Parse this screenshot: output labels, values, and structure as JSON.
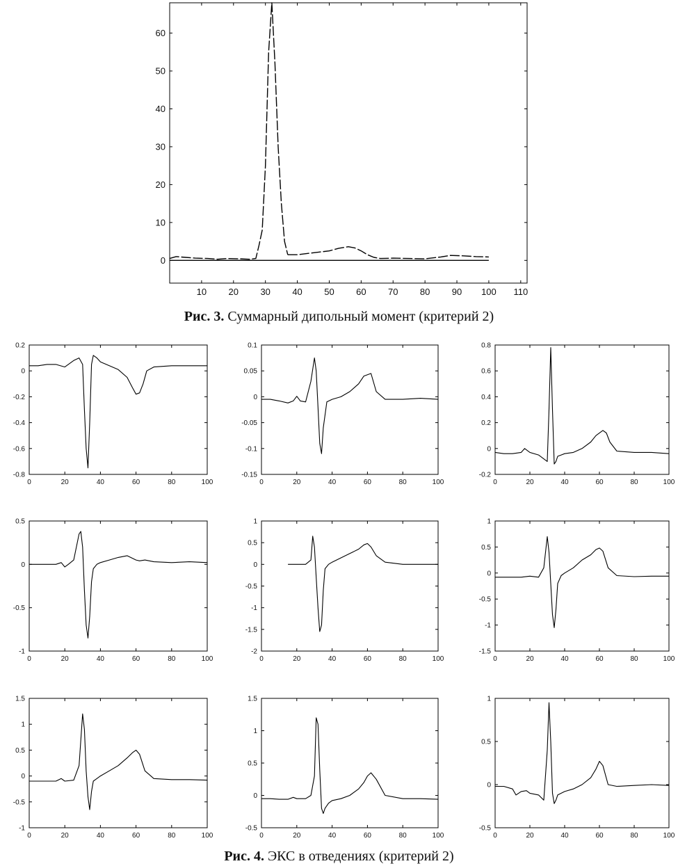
{
  "figure3": {
    "caption_bold": "Рис. 3.",
    "caption_text": " Суммарный дипольный момент (критерий 2)"
  },
  "figure4": {
    "caption_bold": "Рис. 4.",
    "caption_text": " ЭКС в отведениях (критерий 2)"
  },
  "chart_data": [
    {
      "id": "fig3",
      "type": "line",
      "xlim": [
        0,
        112
      ],
      "ylim": [
        -6,
        68
      ],
      "xticks": [
        10,
        20,
        30,
        40,
        50,
        60,
        70,
        80,
        90,
        100,
        110
      ],
      "yticks": [
        0,
        10,
        20,
        30,
        40,
        50,
        60
      ],
      "series": [
        {
          "style": "dashed",
          "x": [
            0,
            2,
            5,
            8,
            12,
            15,
            18,
            22,
            25,
            27,
            28,
            29,
            30,
            31,
            32,
            33,
            34,
            35,
            36,
            37
          ],
          "y": [
            0.5,
            1,
            0.8,
            0.6,
            0.5,
            0.3,
            0.5,
            0.4,
            0.3,
            0.5,
            4,
            8,
            25,
            55,
            68,
            52,
            30,
            15,
            5,
            1.5
          ]
        },
        {
          "style": "dashed",
          "x": [
            37,
            40,
            45,
            50,
            53,
            56,
            58,
            60,
            62,
            64,
            66,
            70,
            75,
            80,
            85,
            88,
            92,
            96,
            100
          ],
          "y": [
            1.5,
            1.5,
            2,
            2.5,
            3.2,
            3.6,
            3.3,
            2.5,
            1.5,
            0.8,
            0.5,
            0.6,
            0.5,
            0.4,
            0.9,
            1.3,
            1.2,
            1,
            0.9
          ]
        },
        {
          "style": "solid",
          "x": [
            0,
            100
          ],
          "y": [
            0,
            0
          ]
        }
      ]
    },
    {
      "id": "p1",
      "type": "line",
      "xlim": [
        0,
        100
      ],
      "ylim": [
        -0.8,
        0.2
      ],
      "xticks": [
        0,
        20,
        40,
        60,
        80,
        100
      ],
      "yticks": [
        0.2,
        0,
        -0.2,
        -0.4,
        -0.6,
        -0.8
      ],
      "ytick_labels": [
        "0.2",
        "0",
        "-0.2",
        "-0.4",
        "-0.6",
        "-0.8"
      ],
      "series": [
        {
          "x": [
            0,
            5,
            10,
            15,
            20,
            25,
            28,
            30,
            31,
            32,
            33,
            34,
            35,
            36,
            38,
            40,
            45,
            50,
            55,
            58,
            60,
            62,
            64,
            66,
            70,
            80,
            90,
            100
          ],
          "y": [
            0.04,
            0.04,
            0.05,
            0.05,
            0.03,
            0.08,
            0.1,
            0.05,
            -0.3,
            -0.6,
            -0.75,
            -0.4,
            0.05,
            0.12,
            0.1,
            0.07,
            0.04,
            0.01,
            -0.05,
            -0.13,
            -0.18,
            -0.17,
            -0.1,
            0,
            0.03,
            0.04,
            0.04,
            0.04
          ]
        }
      ]
    },
    {
      "id": "p2",
      "type": "line",
      "xlim": [
        0,
        100
      ],
      "ylim": [
        -0.15,
        0.1
      ],
      "xticks": [
        0,
        20,
        40,
        60,
        80,
        100
      ],
      "yticks": [
        0.1,
        0.05,
        0,
        -0.05,
        -0.1,
        -0.15
      ],
      "ytick_labels": [
        "0.1",
        "0.05",
        "0",
        "-0.05",
        "-0.1",
        "-0.15"
      ],
      "series": [
        {
          "x": [
            0,
            5,
            10,
            15,
            18,
            20,
            22,
            25,
            28,
            30,
            31,
            32,
            33,
            34,
            35,
            37,
            40,
            45,
            50,
            55,
            58,
            62,
            65,
            70,
            80,
            90,
            100
          ],
          "y": [
            -0.005,
            -0.005,
            -0.008,
            -0.012,
            -0.008,
            0.001,
            -0.008,
            -0.01,
            0.03,
            0.075,
            0.05,
            -0.02,
            -0.09,
            -0.11,
            -0.06,
            -0.01,
            -0.005,
            0,
            0.01,
            0.025,
            0.04,
            0.045,
            0.01,
            -0.005,
            -0.005,
            -0.003,
            -0.005
          ]
        }
      ]
    },
    {
      "id": "p3",
      "type": "line",
      "xlim": [
        0,
        100
      ],
      "ylim": [
        -0.2,
        0.8
      ],
      "xticks": [
        0,
        20,
        40,
        60,
        80,
        100
      ],
      "yticks": [
        0.8,
        0.6,
        0.4,
        0.2,
        0,
        -0.2
      ],
      "ytick_labels": [
        "0.8",
        "0.6",
        "0.4",
        "0.2",
        "0",
        "-0.2"
      ],
      "series": [
        {
          "x": [
            0,
            5,
            10,
            15,
            17,
            20,
            25,
            28,
            30,
            31,
            32,
            33,
            34,
            35,
            36,
            38,
            40,
            45,
            50,
            55,
            58,
            62,
            64,
            66,
            70,
            80,
            90,
            100
          ],
          "y": [
            -0.03,
            -0.04,
            -0.04,
            -0.03,
            0,
            -0.03,
            -0.05,
            -0.08,
            -0.1,
            0.3,
            0.78,
            0.3,
            -0.12,
            -0.1,
            -0.06,
            -0.05,
            -0.04,
            -0.03,
            0,
            0.05,
            0.1,
            0.14,
            0.12,
            0.05,
            -0.02,
            -0.03,
            -0.03,
            -0.04
          ]
        }
      ]
    },
    {
      "id": "p4",
      "type": "line",
      "xlim": [
        0,
        100
      ],
      "ylim": [
        -1,
        0.5
      ],
      "xticks": [
        0,
        20,
        40,
        60,
        80,
        100
      ],
      "yticks": [
        0.5,
        0,
        -0.5,
        -1
      ],
      "ytick_labels": [
        "0.5",
        "0",
        "-0.5",
        "-1"
      ],
      "series": [
        {
          "x": [
            0,
            5,
            10,
            15,
            18,
            20,
            22,
            25,
            28,
            29,
            30,
            31,
            32,
            33,
            34,
            35,
            36,
            38,
            40,
            45,
            50,
            55,
            58,
            60,
            62,
            65,
            70,
            80,
            90,
            100
          ],
          "y": [
            0,
            0,
            0,
            0,
            0.02,
            -0.03,
            0,
            0.05,
            0.35,
            0.38,
            0.2,
            -0.3,
            -0.7,
            -0.85,
            -0.6,
            -0.2,
            -0.05,
            0,
            0.02,
            0.05,
            0.08,
            0.1,
            0.07,
            0.05,
            0.04,
            0.05,
            0.03,
            0.02,
            0.03,
            0.02
          ]
        }
      ]
    },
    {
      "id": "p5",
      "type": "line",
      "xlim": [
        0,
        100
      ],
      "ylim": [
        -2,
        1
      ],
      "xticks": [
        0,
        20,
        40,
        60,
        80,
        100
      ],
      "yticks": [
        1,
        0.5,
        0,
        -0.5,
        -1,
        -1.5,
        -2
      ],
      "ytick_labels": [
        "1",
        "0.5",
        "0",
        "-0.5",
        "-1",
        "-1.5",
        "-2"
      ],
      "series": [
        {
          "x": [
            15,
            20,
            25,
            28,
            29,
            30,
            31,
            32,
            33,
            34,
            35,
            36,
            38,
            40,
            45,
            50,
            55,
            58,
            60,
            62,
            65,
            70,
            80,
            90,
            100
          ],
          "y": [
            0,
            0,
            0,
            0.1,
            0.65,
            0.4,
            -0.3,
            -1,
            -1.55,
            -1.4,
            -0.6,
            -0.1,
            0,
            0.05,
            0.15,
            0.25,
            0.35,
            0.45,
            0.48,
            0.4,
            0.2,
            0.05,
            0,
            0,
            0
          ]
        }
      ]
    },
    {
      "id": "p6",
      "type": "line",
      "xlim": [
        0,
        100
      ],
      "ylim": [
        -1.5,
        1
      ],
      "xticks": [
        0,
        20,
        40,
        60,
        80,
        100
      ],
      "yticks": [
        1,
        0.5,
        0,
        -0.5,
        -1,
        -1.5
      ],
      "ytick_labels": [
        "1",
        "0.5",
        "0",
        "-0.5",
        "-1",
        "-1.5"
      ],
      "series": [
        {
          "x": [
            0,
            5,
            10,
            15,
            20,
            25,
            28,
            30,
            31,
            32,
            33,
            34,
            35,
            36,
            38,
            40,
            45,
            50,
            55,
            58,
            60,
            62,
            65,
            70,
            80,
            90,
            100
          ],
          "y": [
            -0.08,
            -0.08,
            -0.08,
            -0.08,
            -0.06,
            -0.08,
            0.1,
            0.7,
            0.4,
            -0.2,
            -0.8,
            -1.05,
            -0.7,
            -0.2,
            -0.05,
            0,
            0.1,
            0.25,
            0.35,
            0.45,
            0.48,
            0.42,
            0.1,
            -0.05,
            -0.07,
            -0.06,
            -0.06
          ]
        }
      ]
    },
    {
      "id": "p7",
      "type": "line",
      "xlim": [
        0,
        100
      ],
      "ylim": [
        -1,
        1.5
      ],
      "xticks": [
        0,
        20,
        40,
        60,
        80,
        100
      ],
      "yticks": [
        1.5,
        1,
        0.5,
        0,
        -0.5,
        -1
      ],
      "ytick_labels": [
        "1.5",
        "1",
        "0.5",
        "0",
        "-0.5",
        "-1"
      ],
      "series": [
        {
          "x": [
            0,
            5,
            10,
            15,
            18,
            20,
            25,
            28,
            30,
            31,
            32,
            33,
            34,
            35,
            36,
            38,
            40,
            45,
            50,
            55,
            58,
            60,
            62,
            65,
            70,
            80,
            90,
            100
          ],
          "y": [
            -0.1,
            -0.1,
            -0.1,
            -0.1,
            -0.05,
            -0.1,
            -0.08,
            0.2,
            1.2,
            0.9,
            0.1,
            -0.4,
            -0.65,
            -0.3,
            -0.1,
            -0.05,
            0,
            0.1,
            0.2,
            0.35,
            0.45,
            0.5,
            0.42,
            0.1,
            -0.05,
            -0.07,
            -0.07,
            -0.08
          ]
        }
      ]
    },
    {
      "id": "p8",
      "type": "line",
      "xlim": [
        0,
        100
      ],
      "ylim": [
        -0.5,
        1.5
      ],
      "xticks": [
        0,
        20,
        40,
        60,
        80,
        100
      ],
      "yticks": [
        1.5,
        1,
        0.5,
        0,
        -0.5
      ],
      "ytick_labels": [
        "1.5",
        "1",
        "0.5",
        "0",
        "-0.5"
      ],
      "series": [
        {
          "x": [
            0,
            5,
            10,
            15,
            18,
            20,
            25,
            28,
            30,
            31,
            32,
            33,
            34,
            35,
            36,
            38,
            40,
            45,
            50,
            55,
            58,
            60,
            62,
            65,
            70,
            80,
            90,
            100
          ],
          "y": [
            -0.05,
            -0.05,
            -0.06,
            -0.06,
            -0.03,
            -0.05,
            -0.05,
            0,
            0.3,
            1.2,
            1.1,
            0.4,
            -0.2,
            -0.28,
            -0.2,
            -0.12,
            -0.08,
            -0.05,
            0,
            0.1,
            0.2,
            0.3,
            0.35,
            0.25,
            0,
            -0.05,
            -0.05,
            -0.06
          ]
        }
      ]
    },
    {
      "id": "p9",
      "type": "line",
      "xlim": [
        0,
        100
      ],
      "ylim": [
        -0.5,
        1
      ],
      "xticks": [
        0,
        20,
        40,
        60,
        80,
        100
      ],
      "yticks": [
        1,
        0.5,
        0,
        -0.5
      ],
      "ytick_labels": [
        "1",
        "0.5",
        "0",
        "-0.5"
      ],
      "series": [
        {
          "x": [
            0,
            5,
            10,
            12,
            15,
            18,
            20,
            25,
            28,
            30,
            31,
            32,
            33,
            34,
            35,
            36,
            38,
            40,
            45,
            50,
            55,
            58,
            60,
            62,
            65,
            70,
            80,
            90,
            100
          ],
          "y": [
            -0.02,
            -0.02,
            -0.05,
            -0.12,
            -0.08,
            -0.07,
            -0.1,
            -0.12,
            -0.18,
            0.4,
            0.95,
            0.5,
            -0.1,
            -0.22,
            -0.18,
            -0.12,
            -0.1,
            -0.08,
            -0.05,
            0,
            0.08,
            0.18,
            0.27,
            0.22,
            0,
            -0.02,
            -0.01,
            0,
            -0.01
          ]
        }
      ]
    }
  ]
}
